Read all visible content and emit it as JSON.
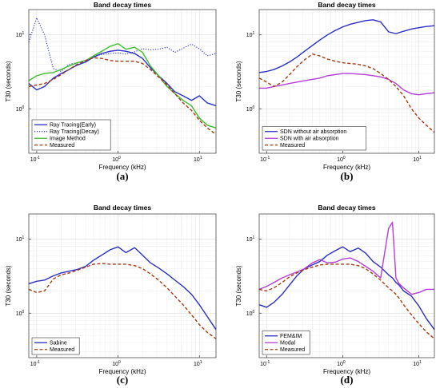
{
  "colors": {
    "blue": "#2a2ec4",
    "blue_dotted": "#2a2ec4",
    "green": "#3fbf2a",
    "measured": "#a63a12",
    "purple": "#b43fd6"
  },
  "chart_data": [
    {
      "id": "a",
      "type": "line",
      "letter": "(a)",
      "title": "Band decay times",
      "xlabel": "Frequency (kHz)",
      "ylabel": "T30 (seconds)",
      "xscale": "log",
      "yscale": "log",
      "xlim": [
        0.08,
        16
      ],
      "ylim": [
        0.25,
        22
      ],
      "grid": true,
      "legend_position": "bottom-left",
      "x": [
        0.08,
        0.1,
        0.125,
        0.16,
        0.2,
        0.25,
        0.315,
        0.4,
        0.5,
        0.63,
        0.8,
        1.0,
        1.25,
        1.6,
        2.0,
        2.5,
        3.15,
        4.0,
        5.0,
        6.3,
        8.0,
        10.0,
        12.5,
        16.0
      ],
      "series": [
        {
          "name": "Ray Tracing(Early)",
          "color_key": "blue",
          "dash": "solid",
          "values": [
            2.2,
            1.8,
            2.0,
            2.6,
            3.0,
            3.4,
            3.9,
            4.3,
            5.0,
            5.6,
            6.0,
            6.2,
            6.0,
            5.6,
            4.8,
            3.6,
            2.8,
            2.2,
            1.7,
            1.5,
            1.3,
            1.5,
            1.2,
            1.1
          ]
        },
        {
          "name": "Ray Tracing(Decay)",
          "color_key": "blue_dotted",
          "dash": "dotted",
          "values": [
            8.0,
            17.0,
            10.0,
            3.5,
            3.2,
            4.0,
            4.2,
            4.5,
            5.2,
            5.4,
            5.6,
            5.7,
            5.5,
            5.9,
            6.5,
            6.3,
            6.4,
            6.8,
            5.8,
            6.6,
            7.5,
            6.5,
            5.2,
            5.6
          ]
        },
        {
          "name": "Image Method",
          "color_key": "green",
          "dash": "solid",
          "values": [
            2.4,
            2.8,
            3.0,
            3.1,
            3.4,
            3.8,
            4.2,
            4.5,
            5.2,
            6.0,
            7.0,
            7.6,
            6.4,
            6.8,
            5.8,
            3.8,
            2.8,
            2.0,
            1.6,
            1.3,
            1.1,
            0.75,
            0.6,
            0.55
          ]
        },
        {
          "name": "Measured",
          "color_key": "measured",
          "dash": "dashed",
          "values": [
            2.0,
            2.1,
            2.2,
            2.5,
            2.9,
            3.4,
            4.0,
            4.5,
            4.9,
            4.8,
            4.5,
            4.4,
            4.4,
            4.4,
            4.1,
            3.4,
            2.7,
            2.1,
            1.6,
            1.2,
            0.95,
            0.7,
            0.55,
            0.45
          ]
        }
      ]
    },
    {
      "id": "b",
      "type": "line",
      "letter": "(b)",
      "title": "Band decay times",
      "xlabel": "Frequency (kHz)",
      "ylabel": "T30 (seconds)",
      "xscale": "log",
      "yscale": "log",
      "xlim": [
        0.08,
        16
      ],
      "ylim": [
        0.25,
        22
      ],
      "grid": true,
      "legend_position": "bottom-left",
      "x": [
        0.08,
        0.1,
        0.125,
        0.16,
        0.2,
        0.25,
        0.315,
        0.4,
        0.5,
        0.63,
        0.8,
        1.0,
        1.25,
        1.6,
        2.0,
        2.5,
        3.15,
        4.0,
        5.0,
        6.3,
        8.0,
        10.0,
        12.5,
        16.0
      ],
      "series": [
        {
          "name": "SDN without air absorption",
          "color_key": "blue",
          "dash": "solid",
          "values": [
            3.1,
            3.2,
            3.4,
            3.8,
            4.3,
            5.0,
            6.0,
            7.2,
            8.5,
            10.0,
            11.5,
            12.8,
            13.9,
            14.8,
            15.6,
            16.0,
            15.0,
            11.0,
            10.4,
            11.2,
            12.0,
            12.5,
            13.0,
            13.3
          ]
        },
        {
          "name": "SDN with air absorption",
          "color_key": "purple",
          "dash": "solid",
          "values": [
            1.9,
            1.9,
            2.0,
            2.1,
            2.2,
            2.3,
            2.4,
            2.5,
            2.6,
            2.8,
            2.9,
            3.0,
            3.0,
            2.95,
            2.9,
            2.8,
            2.7,
            2.5,
            2.2,
            1.8,
            1.6,
            1.55,
            1.6,
            1.65
          ]
        },
        {
          "name": "Measured",
          "color_key": "measured",
          "dash": "dashed",
          "values": [
            2.6,
            2.3,
            2.0,
            2.3,
            2.9,
            3.7,
            4.6,
            5.5,
            5.2,
            4.7,
            4.4,
            4.2,
            4.1,
            4.0,
            3.8,
            3.5,
            3.0,
            2.5,
            2.0,
            1.5,
            1.0,
            0.75,
            0.6,
            0.48
          ]
        }
      ]
    },
    {
      "id": "c",
      "type": "line",
      "letter": "(c)",
      "title": "Band decay times",
      "xlabel": "Frequency (kHz)",
      "ylabel": "T30 (seconds)",
      "xscale": "log",
      "yscale": "log",
      "xlim": [
        0.08,
        16
      ],
      "ylim": [
        0.25,
        22
      ],
      "grid": true,
      "legend_position": "bottom-left",
      "x": [
        0.08,
        0.1,
        0.125,
        0.16,
        0.2,
        0.25,
        0.315,
        0.4,
        0.5,
        0.63,
        0.8,
        1.0,
        1.25,
        1.6,
        2.0,
        2.5,
        3.15,
        4.0,
        5.0,
        6.3,
        8.0,
        10.0,
        12.5,
        16.0
      ],
      "series": [
        {
          "name": "Sabine",
          "color_key": "blue",
          "dash": "solid",
          "values": [
            2.5,
            2.7,
            2.8,
            3.2,
            3.5,
            3.7,
            3.9,
            4.3,
            5.2,
            6.1,
            7.2,
            7.9,
            6.6,
            7.7,
            6.1,
            4.8,
            4.1,
            3.4,
            2.8,
            2.3,
            1.8,
            1.3,
            0.9,
            0.6
          ]
        },
        {
          "name": "Measured",
          "color_key": "measured",
          "dash": "dashed",
          "values": [
            2.1,
            1.9,
            2.0,
            2.9,
            3.3,
            3.5,
            3.8,
            4.2,
            4.6,
            4.7,
            4.6,
            4.6,
            4.6,
            4.4,
            4.0,
            3.4,
            2.8,
            2.2,
            1.7,
            1.3,
            0.95,
            0.7,
            0.55,
            0.45
          ]
        }
      ]
    },
    {
      "id": "d",
      "type": "line",
      "letter": "(d)",
      "title": "Band decay times",
      "xlabel": "Frequency (kHz)",
      "ylabel": "T30 (seconds)",
      "xscale": "log",
      "yscale": "log",
      "xlim": [
        0.08,
        16
      ],
      "ylim": [
        0.25,
        22
      ],
      "grid": true,
      "legend_position": "bottom-left",
      "x": [
        0.08,
        0.1,
        0.125,
        0.16,
        0.2,
        0.25,
        0.315,
        0.4,
        0.5,
        0.63,
        0.8,
        1.0,
        1.25,
        1.6,
        2.0,
        2.5,
        3.15,
        4.0,
        4.5,
        5.0,
        5.5,
        6.3,
        8.0,
        10.0,
        12.5,
        16.0
      ],
      "series": [
        {
          "name": "FEM&IM",
          "color_key": "blue",
          "dash": "solid",
          "values": [
            1.3,
            1.2,
            1.4,
            1.8,
            2.4,
            3.2,
            4.0,
            4.5,
            5.0,
            6.1,
            7.0,
            7.9,
            6.8,
            7.6,
            6.5,
            5.0,
            4.2,
            3.3,
            3.0,
            2.6,
            2.4,
            2.0,
            1.7,
            1.25,
            0.85,
            0.6
          ]
        },
        {
          "name": "Modal",
          "color_key": "purple",
          "dash": "solid",
          "values": [
            2.1,
            2.3,
            2.6,
            3.0,
            3.3,
            3.6,
            4.0,
            4.8,
            5.3,
            4.8,
            4.9,
            5.4,
            5.6,
            5.0,
            4.3,
            3.7,
            3.0,
            14.0,
            17.0,
            3.0,
            2.5,
            2.2,
            1.8,
            1.9,
            2.1,
            2.1
          ]
        },
        {
          "name": "Measured",
          "color_key": "measured",
          "dash": "dashed",
          "values": [
            2.1,
            2.0,
            2.2,
            2.6,
            3.1,
            3.5,
            3.9,
            4.2,
            4.5,
            4.6,
            4.6,
            4.6,
            4.6,
            4.4,
            4.0,
            3.4,
            2.8,
            2.2,
            2.0,
            1.8,
            1.6,
            1.3,
            0.95,
            0.72,
            0.56,
            0.45
          ]
        }
      ]
    }
  ]
}
